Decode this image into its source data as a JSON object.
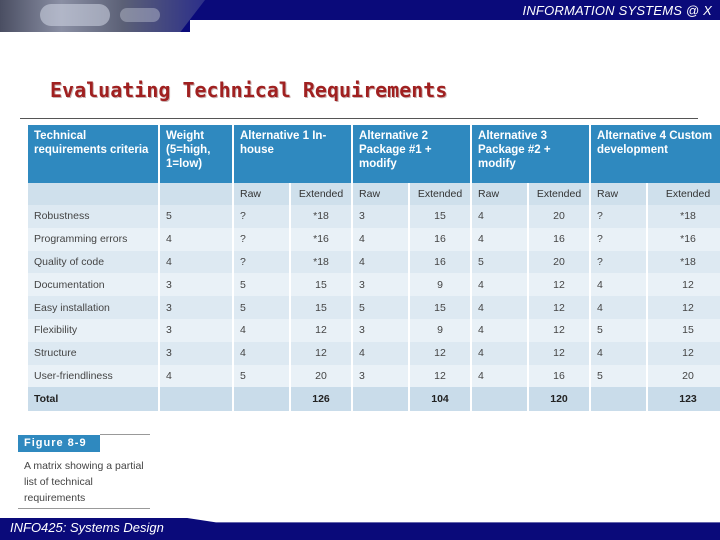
{
  "header": {
    "title": "INFORMATION SYSTEMS @ X"
  },
  "slide": {
    "title": "Evaluating Technical Requirements"
  },
  "table": {
    "headers": [
      "Technical requirements criteria",
      "Weight (5=high, 1=low)",
      "Alternative 1 In-house",
      "Alternative 2 Package #1 + modify",
      "Alternative 3 Package #2 + modify",
      "Alternative 4 Custom development"
    ],
    "subheaders": [
      "Raw",
      "Extended"
    ],
    "rows": [
      {
        "criterion": "Robustness",
        "weight": "5",
        "a1": [
          "?",
          "*18"
        ],
        "a2": [
          "3",
          "15"
        ],
        "a3": [
          "4",
          "20"
        ],
        "a4": [
          "?",
          "*18"
        ]
      },
      {
        "criterion": "Programming errors",
        "weight": "4",
        "a1": [
          "?",
          "*16"
        ],
        "a2": [
          "4",
          "16"
        ],
        "a3": [
          "4",
          "16"
        ],
        "a4": [
          "?",
          "*16"
        ]
      },
      {
        "criterion": "Quality of code",
        "weight": "4",
        "a1": [
          "?",
          "*18"
        ],
        "a2": [
          "4",
          "16"
        ],
        "a3": [
          "5",
          "20"
        ],
        "a4": [
          "?",
          "*18"
        ]
      },
      {
        "criterion": "Documentation",
        "weight": "3",
        "a1": [
          "5",
          "15"
        ],
        "a2": [
          "3",
          "9"
        ],
        "a3": [
          "4",
          "12"
        ],
        "a4": [
          "4",
          "12"
        ]
      },
      {
        "criterion": "Easy installation",
        "weight": "3",
        "a1": [
          "5",
          "15"
        ],
        "a2": [
          "5",
          "15"
        ],
        "a3": [
          "4",
          "12"
        ],
        "a4": [
          "4",
          "12"
        ]
      },
      {
        "criterion": "Flexibility",
        "weight": "3",
        "a1": [
          "4",
          "12"
        ],
        "a2": [
          "3",
          "9"
        ],
        "a3": [
          "4",
          "12"
        ],
        "a4": [
          "5",
          "15"
        ]
      },
      {
        "criterion": "Structure",
        "weight": "3",
        "a1": [
          "4",
          "12"
        ],
        "a2": [
          "4",
          "12"
        ],
        "a3": [
          "4",
          "12"
        ],
        "a4": [
          "4",
          "12"
        ]
      },
      {
        "criterion": "User-friendliness",
        "weight": "4",
        "a1": [
          "5",
          "20"
        ],
        "a2": [
          "3",
          "12"
        ],
        "a3": [
          "4",
          "16"
        ],
        "a4": [
          "5",
          "20"
        ]
      }
    ],
    "total": {
      "label": "Total",
      "a1": "126",
      "a2": "104",
      "a3": "120",
      "a4": "123"
    }
  },
  "figure": {
    "label": "Figure 8-9",
    "caption": "A matrix showing a partial list of technical requirements"
  },
  "footer": {
    "course": "INFO425: Systems Design"
  },
  "colors": {
    "header_navy": "#0a0a7a",
    "table_blue": "#2f89bf",
    "title_red": "#a02020"
  }
}
